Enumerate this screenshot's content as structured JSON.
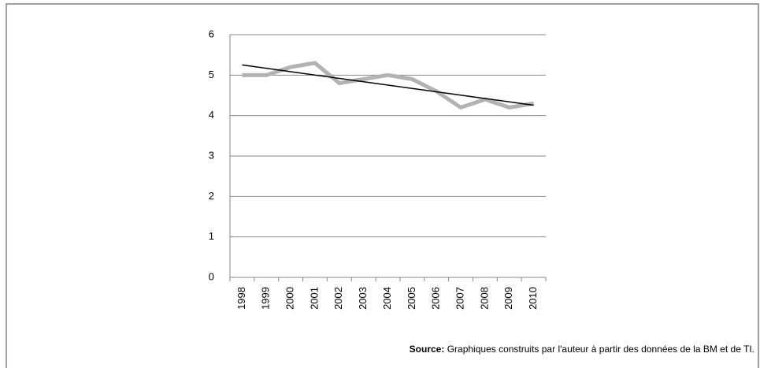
{
  "chart_data": {
    "type": "line",
    "categories": [
      "1998",
      "1999",
      "2000",
      "2001",
      "2002",
      "2003",
      "2004",
      "2005",
      "2006",
      "2007",
      "2008",
      "2009",
      "2010"
    ],
    "series": [
      {
        "color": "#b3b3b3",
        "values": [
          5.0,
          5.0,
          5.2,
          5.3,
          4.8,
          4.9,
          5.0,
          4.9,
          4.6,
          4.2,
          4.4,
          4.2,
          4.3
        ]
      }
    ],
    "trendline": {
      "type": "linear",
      "color": "#000000"
    },
    "ylim": [
      0,
      6
    ],
    "yticks": [
      0,
      1,
      2,
      3,
      4,
      5,
      6
    ],
    "grid": true,
    "source_label": "Source:",
    "source_text": "Graphiques construits par l'auteur à partir des données de la BM et de TI."
  }
}
